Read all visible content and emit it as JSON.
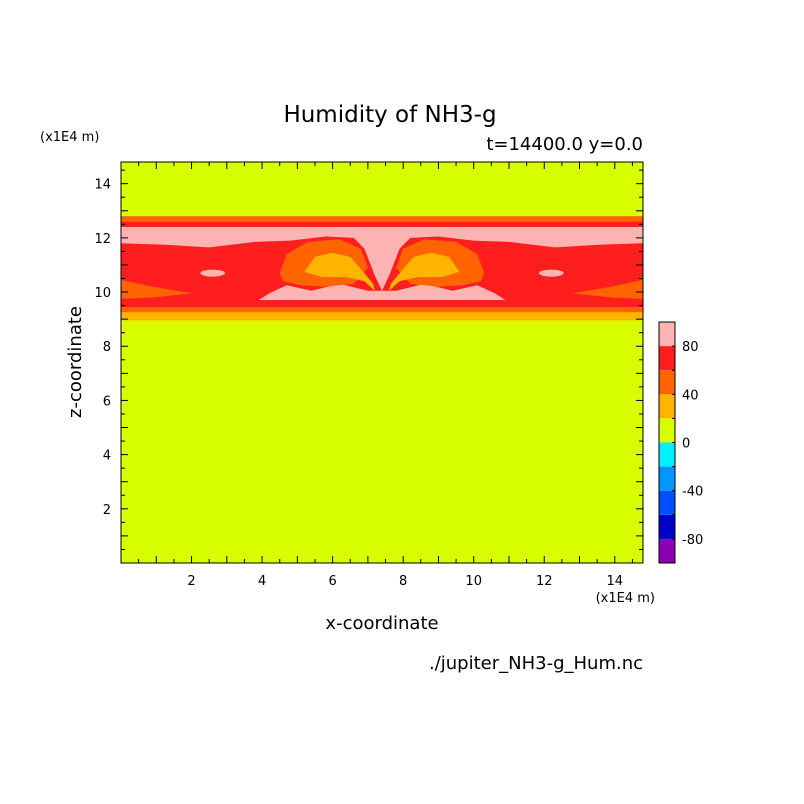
{
  "chart_data": {
    "type": "heatmap",
    "title": "Humidity of NH3-g",
    "subtitle": "t=14400.0 y=0.0",
    "xlabel": "x-coordinate",
    "ylabel": "z-coordinate",
    "x_unit": "(x1E4 m)",
    "y_unit": "(x1E4 m)",
    "footer": "./jupiter_NH3-g_Hum.nc",
    "xlim": [
      0,
      14.8
    ],
    "ylim": [
      0,
      14.8
    ],
    "x_ticks": [
      2,
      4,
      6,
      8,
      10,
      12,
      14
    ],
    "y_ticks": [
      2,
      4,
      6,
      8,
      10,
      12,
      14
    ],
    "colorbar": {
      "levels": [
        -100,
        -80,
        -60,
        -40,
        -20,
        0,
        20,
        40,
        60,
        80,
        100
      ],
      "colors": [
        "#8b00b4",
        "#0000c8",
        "#0050ff",
        "#0096ff",
        "#00f0ff",
        "#d7ff00",
        "#ffb400",
        "#ff6400",
        "#ff1e1e",
        "#ffb4b4"
      ],
      "tick_labels": [
        "80",
        "40",
        "0",
        "-40",
        "-80"
      ],
      "tick_values": [
        80,
        40,
        0,
        -40,
        -80
      ]
    },
    "background_value": "0 to 20",
    "bands": [
      {
        "z_range": [
          0,
          8.95
        ],
        "value": "0 to 20"
      },
      {
        "z_range": [
          8.95,
          9.25
        ],
        "value": "20 to 40"
      },
      {
        "z_range": [
          9.25,
          9.45
        ],
        "value": "40 to 60"
      },
      {
        "z_range": [
          9.45,
          12.4
        ],
        "value": "60 to 80 (with embedded cells)"
      },
      {
        "z_range": [
          12.4,
          12.6
        ],
        "value": "80 to 100"
      },
      {
        "z_range": [
          12.6,
          12.8
        ],
        "value": "40 to 60"
      },
      {
        "z_range": [
          12.8,
          14.8
        ],
        "value": "0 to 20"
      }
    ]
  }
}
